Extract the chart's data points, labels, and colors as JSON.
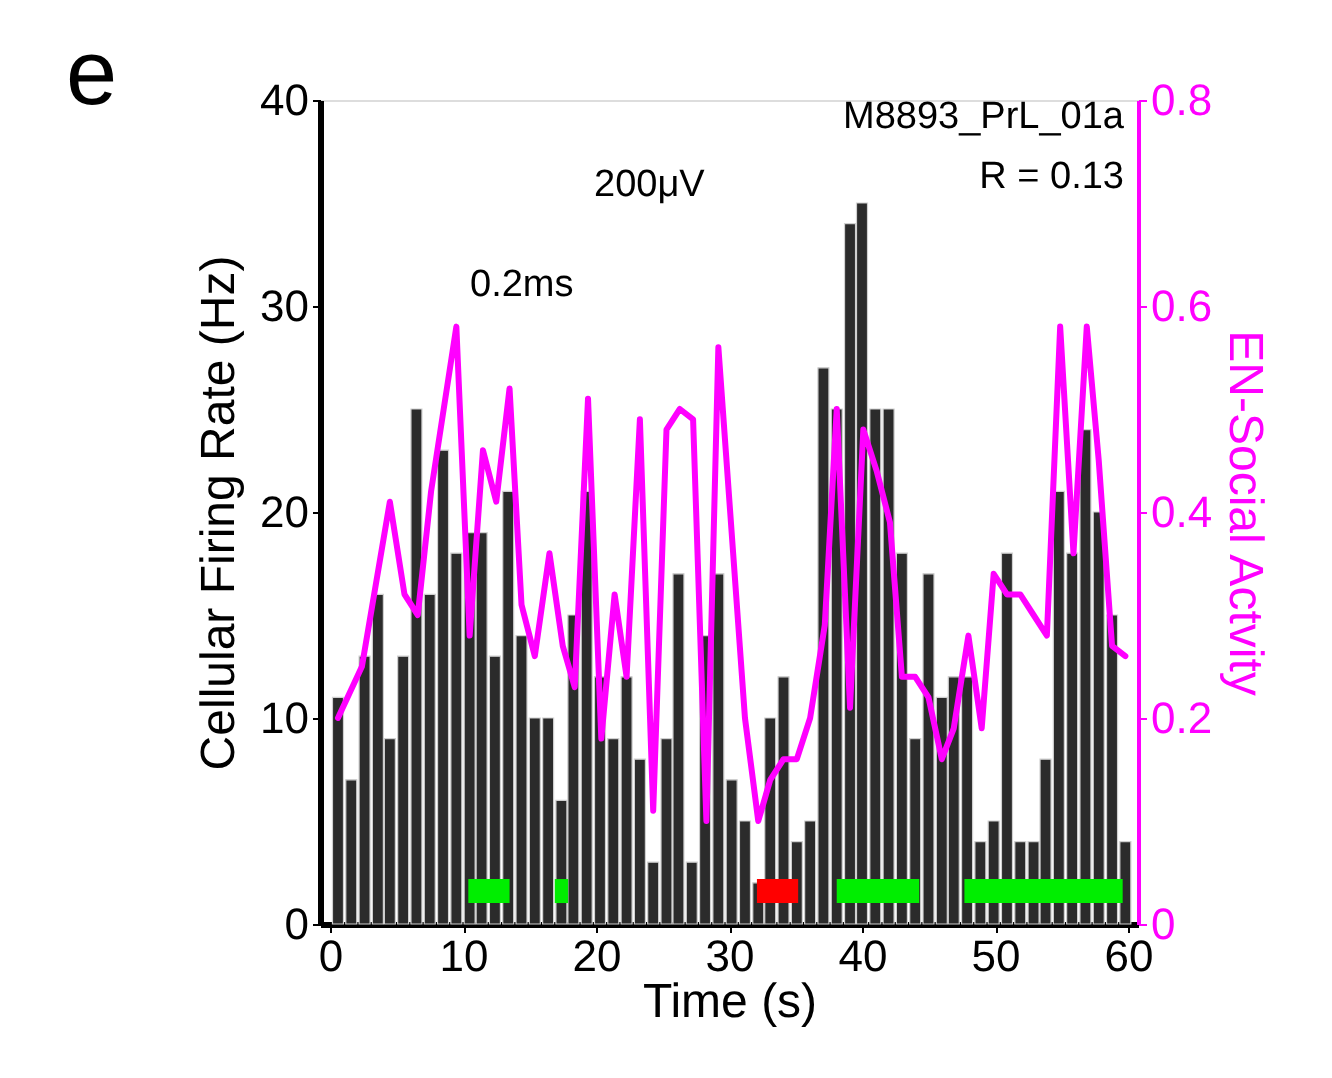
{
  "chart_data": {
    "type": "bar",
    "xlabel": "Time (s)",
    "ylabel": "Cellular Firing Rate (Hz)",
    "y2label": "EN-Social Actvity",
    "x": [
      0.6,
      1.6,
      2.6,
      3.6,
      4.5,
      5.5,
      6.5,
      7.5,
      8.5,
      9.5,
      10.5,
      11.4,
      12.4,
      13.4,
      14.4,
      15.4,
      16.4,
      17.4,
      18.3,
      19.3,
      20.3,
      21.3,
      22.3,
      23.3,
      24.3,
      25.3,
      26.2,
      27.2,
      28.2,
      29.2,
      30.2,
      31.2,
      32.2,
      33.1,
      34.1,
      35.1,
      36.1,
      37.1,
      38.1,
      39.1,
      40.0,
      41.0,
      42.0,
      43.0,
      44.0,
      45.0,
      46.0,
      46.9,
      47.9,
      48.9,
      49.9,
      50.9,
      51.9,
      52.9,
      53.8,
      54.8,
      55.8,
      56.8,
      57.8,
      58.8,
      59.8
    ],
    "series": [
      {
        "color": "#2b2b2b",
        "values": [
          11,
          7,
          13,
          16,
          9,
          13,
          25,
          16,
          23,
          18,
          19,
          19,
          13,
          21,
          14,
          10,
          10,
          6,
          15,
          21,
          12,
          9,
          12,
          8,
          3,
          9,
          17,
          3,
          14,
          17,
          7,
          5,
          2,
          10,
          12,
          4,
          5,
          27,
          25,
          34,
          35,
          25,
          25,
          18,
          9,
          17,
          11,
          12,
          12,
          4,
          5,
          18,
          4,
          4,
          8,
          21,
          18,
          24,
          20,
          15,
          4
        ]
      },
      {
        "type": "line",
        "axis": "y2",
        "color": "#ff00ff",
        "x": [
          0.6,
          2.4,
          4.5,
          5.6,
          6.6,
          7.6,
          9.5,
          10.5,
          11.5,
          12.5,
          13.5,
          14.4,
          15.4,
          16.5,
          17.5,
          18.4,
          19.4,
          20.4,
          21.4,
          22.3,
          23.3,
          24.3,
          25.3,
          26.3,
          27.3,
          28.3,
          29.2,
          31.2,
          32.2,
          33.1,
          34.1,
          35.1,
          36.1,
          37.2,
          38.1,
          39.1,
          40.1,
          41.1,
          42.1,
          43.0,
          44.0,
          45.0,
          46.0,
          46.9,
          48.0,
          49.0,
          49.9,
          50.9,
          51.9,
          52.9,
          53.9,
          54.9,
          55.9,
          56.9,
          57.8,
          58.8,
          59.8
        ],
        "values": [
          0.2,
          0.25,
          0.41,
          0.32,
          0.3,
          0.42,
          0.58,
          0.28,
          0.46,
          0.41,
          0.52,
          0.31,
          0.26,
          0.36,
          0.27,
          0.23,
          0.51,
          0.18,
          0.32,
          0.24,
          0.49,
          0.11,
          0.48,
          0.5,
          0.49,
          0.1,
          0.56,
          0.2,
          0.1,
          0.14,
          0.16,
          0.16,
          0.2,
          0.29,
          0.5,
          0.21,
          0.48,
          0.44,
          0.39,
          0.24,
          0.24,
          0.22,
          0.16,
          0.19,
          0.28,
          0.19,
          0.34,
          0.32,
          0.32,
          0.3,
          0.28,
          0.58,
          0.36,
          0.58,
          0.45,
          0.27,
          0.26
        ]
      },
      {
        "type": "line",
        "color": "#00ee00",
        "x": [
          10.4,
          13.5
        ],
        "values": [
          1.6,
          1.6
        ]
      },
      {
        "type": "line",
        "color": "#00ee00",
        "x": [
          16.9,
          17.9
        ],
        "values": [
          1.6,
          1.6
        ]
      },
      {
        "type": "line",
        "color": "#ff0000",
        "x": [
          32.1,
          35.2
        ],
        "values": [
          1.6,
          1.6
        ]
      },
      {
        "type": "line",
        "color": "#00ee00",
        "x": [
          38.1,
          44.3
        ],
        "values": [
          1.6,
          1.6
        ]
      },
      {
        "type": "line",
        "color": "#00ee00",
        "x": [
          47.7,
          59.6
        ],
        "values": [
          1.6,
          1.6
        ]
      }
    ],
    "xlim": [
      0,
      60
    ],
    "xticks": [
      0,
      10,
      20,
      30,
      40,
      50,
      60
    ],
    "ylim": [
      0,
      40
    ],
    "yticks": [
      0,
      10,
      20,
      30,
      40
    ],
    "y2lim": [
      0,
      0.8
    ],
    "y2ticks": [
      0,
      0.2,
      0.4,
      0.6,
      0.8
    ],
    "grid": false,
    "annotations": [
      "e",
      "M8893_PrL_01a",
      "R = 0.13",
      "200μV",
      "0.2ms"
    ]
  }
}
